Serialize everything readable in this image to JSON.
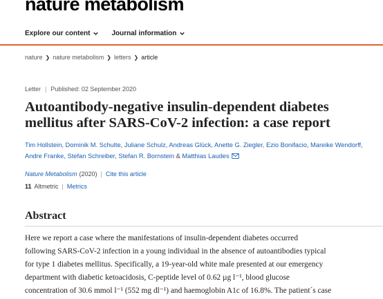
{
  "brand": "nature metabolism",
  "nav": {
    "explore": "Explore our content",
    "journal_info": "Journal information"
  },
  "breadcrumb": [
    "nature",
    "nature metabolism",
    "letters",
    "article"
  ],
  "article": {
    "type": "Letter",
    "published": "Published: 02 September 2020",
    "title": "Autoantibody-negative insulin-dependent diabetes mellitus after SARS-CoV-2 infection: a case report",
    "authors_line1": "Tim Hollstein, Dominik M. Schulte, Juliane Schulz, Andreas Glück, Anette G. Ziegler, Ezio Bonifacio, Mareike",
    "authors_line2": "Wendorff, Andre Franke, Stefan Schreiber, Stefan R. Bornstein",
    "authors_amp": "&",
    "authors_last": "Matthias Laudes",
    "journal": "Nature Metabolism",
    "year": "(2020)",
    "cite_label": "Cite this article",
    "altmetric_score": "11",
    "altmetric_label": "Altmetric",
    "metrics_label": "Metrics"
  },
  "abstract": {
    "heading": "Abstract",
    "lines": [
      "Here we report a case where the manifestations of insulin-dependent diabetes occurred",
      "following SARS-CoV-2 infection in a young individual in the absence of autoantibodies typical",
      "for type 1 diabetes mellitus. Specifically, a 19-year-old white male presented at our emergency",
      "department with diabetic ketoacidosis, C-peptide level of 0.62 µg l⁻¹, blood glucose",
      "concentration of 30.6 mmol l⁻¹ (552 mg dl⁻¹) and haemoglobin A1c of 16.8%. The patient´s case"
    ]
  },
  "colors": {
    "accent": "#e0622a",
    "link": "#1a5fb4"
  }
}
